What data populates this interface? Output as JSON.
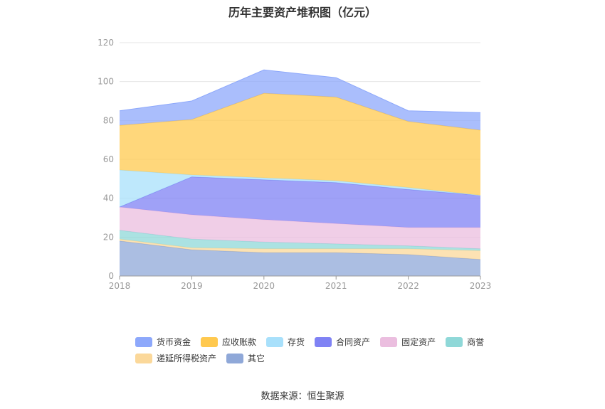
{
  "chart_data": {
    "type": "area",
    "stacked": true,
    "title": "历年主要资产堆积图（亿元）",
    "x": [
      "2018",
      "2019",
      "2020",
      "2021",
      "2022",
      "2023"
    ],
    "ylim": [
      0,
      120
    ],
    "yticks": [
      0,
      20,
      40,
      60,
      80,
      100,
      120
    ],
    "grid": true,
    "legend_position": "bottom",
    "series": [
      {
        "name": "其它",
        "color": "#8fa8d8",
        "values": [
          18,
          13.5,
          12,
          12,
          11,
          8.5
        ]
      },
      {
        "name": "递延所得税资产",
        "color": "#fbd89a",
        "values": [
          1,
          1,
          2,
          2,
          3,
          4.5
        ]
      },
      {
        "name": "商誉",
        "color": "#8fd8d8",
        "values": [
          4.5,
          4.5,
          3.5,
          2.5,
          1.5,
          1
        ]
      },
      {
        "name": "固定资产",
        "color": "#ebbedf",
        "values": [
          12,
          12.5,
          11.5,
          10.5,
          9.5,
          11
        ]
      },
      {
        "name": "合同资产",
        "color": "#7f82f4",
        "values": [
          0,
          19.5,
          20.5,
          21,
          19.5,
          16.5
        ]
      },
      {
        "name": "存货",
        "color": "#a8e0fb",
        "values": [
          19,
          1,
          1,
          1,
          1,
          0
        ]
      },
      {
        "name": "应收账款",
        "color": "#ffc94f",
        "values": [
          23,
          28.5,
          43.5,
          43,
          34,
          33.5
        ]
      },
      {
        "name": "货币资金",
        "color": "#8da8fb",
        "values": [
          7.5,
          9.5,
          12,
          10,
          5.5,
          9
        ]
      }
    ]
  },
  "legend": {
    "row1": [
      "货币资金",
      "应收账款",
      "存货",
      "合同资产",
      "固定资产",
      "商誉"
    ],
    "row2": [
      "递延所得税资产",
      "其它"
    ]
  },
  "colors": {
    "货币资金": "#8da8fb",
    "应收账款": "#ffc94f",
    "存货": "#a8e0fb",
    "合同资产": "#7f82f4",
    "固定资产": "#ebbedf",
    "商誉": "#8fd8d8",
    "递延所得税资产": "#fbd89a",
    "其它": "#8fa8d8"
  },
  "source": "数据来源：恒生聚源"
}
